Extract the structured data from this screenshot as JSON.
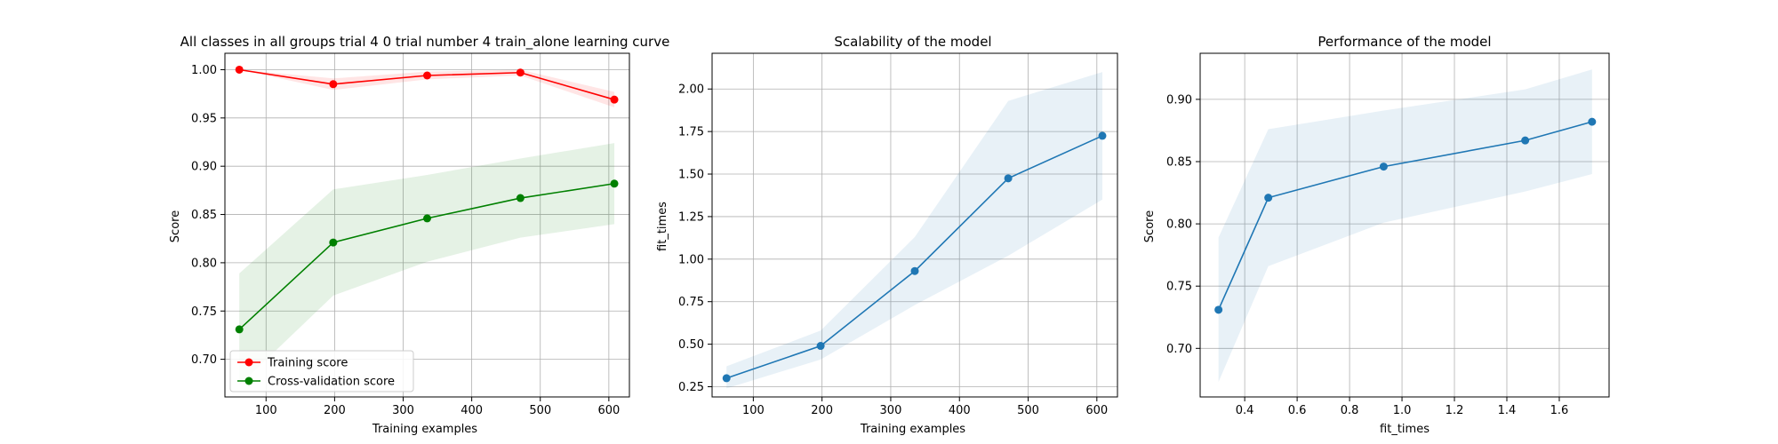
{
  "chart_data": [
    {
      "type": "line",
      "title": "All classes in all groups trial 4 0 trial number 4 train_alone learning curve",
      "xlabel": "Training examples",
      "ylabel": "Score",
      "xlim": [
        40,
        630
      ],
      "ylim": [
        0.661,
        1.017
      ],
      "xticks": [
        100,
        200,
        300,
        400,
        500,
        600
      ],
      "xtick_labels": [
        "100",
        "200",
        "300",
        "400",
        "500",
        "600"
      ],
      "yticks": [
        0.7,
        0.75,
        0.8,
        0.85,
        0.9,
        0.95,
        1.0
      ],
      "ytick_labels": [
        "0.70",
        "0.75",
        "0.80",
        "0.85",
        "0.90",
        "0.95",
        "1.00"
      ],
      "grid": true,
      "legend": "lower-left",
      "series": [
        {
          "name": "Training score",
          "color": "#ff0000",
          "x": [
            61,
            198,
            335,
            471,
            608
          ],
          "y": [
            1.0,
            0.985,
            0.994,
            0.997,
            0.969
          ],
          "band_upper": [
            1.0,
            0.991,
            0.998,
            1.0,
            0.977
          ],
          "band_lower": [
            1.0,
            0.979,
            0.99,
            0.994,
            0.961
          ]
        },
        {
          "name": "Cross-validation score",
          "color": "#008000",
          "x": [
            61,
            198,
            335,
            471,
            608
          ],
          "y": [
            0.731,
            0.821,
            0.846,
            0.867,
            0.882
          ],
          "band_upper": [
            0.789,
            0.876,
            0.891,
            0.908,
            0.924
          ],
          "band_lower": [
            0.673,
            0.766,
            0.801,
            0.826,
            0.84
          ]
        }
      ]
    },
    {
      "type": "line",
      "title": "Scalability of the model",
      "xlabel": "Training examples",
      "ylabel": "fit_times",
      "xlim": [
        40,
        630
      ],
      "ylim": [
        0.19,
        2.21
      ],
      "xticks": [
        100,
        200,
        300,
        400,
        500,
        600
      ],
      "xtick_labels": [
        "100",
        "200",
        "300",
        "400",
        "500",
        "600"
      ],
      "yticks": [
        0.25,
        0.5,
        0.75,
        1.0,
        1.25,
        1.5,
        1.75,
        2.0
      ],
      "ytick_labels": [
        "0.25",
        "0.50",
        "0.75",
        "1.00",
        "1.25",
        "1.50",
        "1.75",
        "2.00"
      ],
      "grid": true,
      "series": [
        {
          "color": "#1f77b4",
          "x": [
            61,
            198,
            335,
            471,
            608
          ],
          "y": [
            0.3,
            0.49,
            0.93,
            1.475,
            1.725
          ],
          "band_upper": [
            0.37,
            0.58,
            1.13,
            1.93,
            2.1
          ],
          "band_lower": [
            0.24,
            0.41,
            0.73,
            1.02,
            1.35
          ]
        }
      ]
    },
    {
      "type": "line",
      "title": "Performance of the model",
      "xlabel": "fit_times",
      "ylabel": "Score",
      "xlim": [
        0.23,
        1.79
      ],
      "ylim": [
        0.661,
        0.937
      ],
      "xticks": [
        0.4,
        0.6,
        0.8,
        1.0,
        1.2,
        1.4,
        1.6
      ],
      "xtick_labels": [
        "0.4",
        "0.6",
        "0.8",
        "1.0",
        "1.2",
        "1.4",
        "1.6"
      ],
      "yticks": [
        0.7,
        0.75,
        0.8,
        0.85,
        0.9
      ],
      "ytick_labels": [
        "0.70",
        "0.75",
        "0.80",
        "0.85",
        "0.90"
      ],
      "grid": true,
      "series": [
        {
          "color": "#1f77b4",
          "x": [
            0.3,
            0.49,
            0.93,
            1.47,
            1.725
          ],
          "y": [
            0.731,
            0.821,
            0.846,
            0.867,
            0.882
          ],
          "band_upper": [
            0.789,
            0.876,
            0.891,
            0.908,
            0.924
          ],
          "band_lower": [
            0.673,
            0.766,
            0.801,
            0.826,
            0.84
          ]
        }
      ]
    }
  ]
}
